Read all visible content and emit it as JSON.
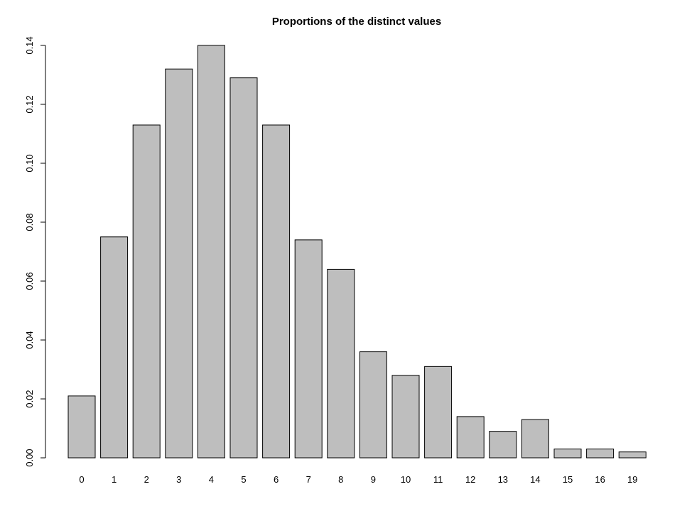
{
  "chart_data": {
    "type": "bar",
    "title": "Proportions of the distinct values",
    "xlabel": "",
    "ylabel": "",
    "categories": [
      "0",
      "1",
      "2",
      "3",
      "4",
      "5",
      "6",
      "7",
      "8",
      "9",
      "10",
      "11",
      "12",
      "13",
      "14",
      "15",
      "16",
      "19"
    ],
    "values": [
      0.021,
      0.075,
      0.113,
      0.132,
      0.14,
      0.129,
      0.113,
      0.074,
      0.064,
      0.036,
      0.028,
      0.031,
      0.014,
      0.009,
      0.013,
      0.003,
      0.003,
      0.002
    ],
    "ylim": [
      0,
      0.14
    ],
    "yticks": [
      "0.00",
      "0.02",
      "0.04",
      "0.06",
      "0.08",
      "0.10",
      "0.12",
      "0.14"
    ],
    "grid": false,
    "legend": "none",
    "bar_fill": "#bebebe",
    "bar_stroke": "#000000"
  }
}
